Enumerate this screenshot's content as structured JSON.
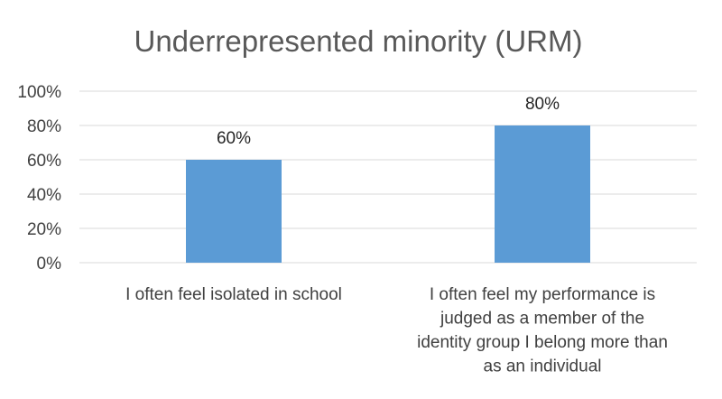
{
  "chart_data": {
    "type": "bar",
    "title": "Underrepresented minority (URM)",
    "xlabel": "",
    "ylabel": "",
    "categories": [
      "I often feel isolated in school",
      "I often feel my performance is judged as a member of the identity group I belong more than as an individual"
    ],
    "category_lines": [
      [
        "I often feel isolated in school"
      ],
      [
        "I often feel my performance is",
        "judged as a member of the",
        "identity group I belong more than",
        "as an individual"
      ]
    ],
    "values": [
      60,
      80
    ],
    "data_labels": [
      "60%",
      "80%"
    ],
    "ylim": [
      0,
      100
    ],
    "yticks": [
      "0%",
      "20%",
      "40%",
      "60%",
      "80%",
      "100%"
    ],
    "bar_color": "#5b9bd5",
    "gridlines": true,
    "legend": "none"
  }
}
